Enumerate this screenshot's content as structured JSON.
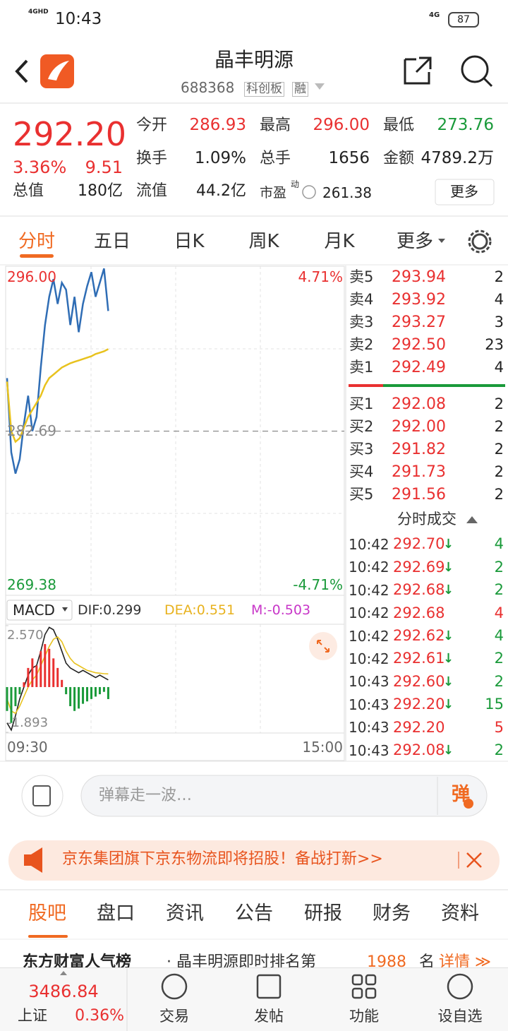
{
  "status_bar": {
    "network": "4GHD",
    "time": "10:43",
    "signal": "4G",
    "battery": "87"
  },
  "header": {
    "title": "晶丰明源",
    "code": "688368",
    "tags": [
      "科创板",
      "融"
    ]
  },
  "quote": {
    "price": "292.20",
    "change_pct": "3.36%",
    "change": "9.51",
    "stats": [
      [
        {
          "label": "今开",
          "value": "286.93",
          "tone": "up"
        },
        {
          "label": "最高",
          "value": "296.00",
          "tone": "up"
        },
        {
          "label": "最低",
          "value": "273.76",
          "tone": "down"
        }
      ],
      [
        {
          "label": "换手",
          "value": "1.09%"
        },
        {
          "label": "总手",
          "value": "1656"
        },
        {
          "label": "金额",
          "value": "4789.2万"
        }
      ]
    ],
    "caps": [
      {
        "label": "总值",
        "value": "180亿"
      },
      {
        "label": "流值",
        "value": "44.2亿"
      }
    ],
    "pe": {
      "label": "市盈",
      "sup": "动",
      "value": "261.38"
    },
    "more": "更多"
  },
  "tabs": [
    "分时",
    "五日",
    "日K",
    "周K",
    "月K",
    "更多"
  ],
  "active_tab": 0,
  "chart_data": [
    {
      "type": "line",
      "x": [
        "09:30",
        "09:33",
        "09:36",
        "09:39",
        "09:42",
        "09:45",
        "09:48",
        "09:51",
        "09:54",
        "09:57",
        "10:00",
        "10:03",
        "10:06",
        "10:09",
        "10:12",
        "10:15",
        "10:18",
        "10:21",
        "10:24",
        "10:27",
        "10:30",
        "10:33",
        "10:36",
        "10:39",
        "10:42"
      ],
      "xlim": [
        "09:30",
        "15:00"
      ],
      "ylim": [
        269.38,
        296.0
      ],
      "yticks": [
        {
          "value": 296.0,
          "label": "296.00"
        },
        {
          "value": 282.69,
          "label": "282.69"
        },
        {
          "value": 269.38,
          "label": "269.38"
        }
      ],
      "right_labels": [
        "4.71%",
        "-4.71%"
      ],
      "series": [
        {
          "color": "#2f6db5",
          "values": [
            286.99,
            280.97,
            279.25,
            280.4,
            283.26,
            285.56,
            282.69,
            283.84,
            287.85,
            291.29,
            293.58,
            295.01,
            293.0,
            294.72,
            294.15,
            291.29,
            293.58,
            290.71,
            293.0,
            294.44,
            295.58,
            293.58,
            294.72,
            295.87,
            292.43
          ]
        },
        {
          "color": "#e8c21e",
          "values": [
            286.7,
            282.69,
            281.83,
            282.12,
            282.98,
            283.84,
            284.41,
            284.98,
            285.56,
            286.41,
            286.99,
            287.27,
            287.56,
            287.85,
            288.02,
            288.19,
            288.31,
            288.42,
            288.53,
            288.65,
            288.76,
            288.94,
            289.05,
            289.16,
            289.34
          ]
        }
      ]
    },
    {
      "type": "macd",
      "title": "MACD",
      "x": [
        "09:30",
        "09:33",
        "09:36",
        "09:39",
        "09:42",
        "09:45",
        "09:48",
        "09:51",
        "09:54",
        "09:57",
        "10:00",
        "10:03",
        "10:06",
        "10:09",
        "10:12",
        "10:15",
        "10:18",
        "10:21",
        "10:24",
        "10:27",
        "10:30",
        "10:33",
        "10:36",
        "10:39",
        "10:42"
      ],
      "xlim": [
        "09:30",
        "15:00"
      ],
      "ylim": [
        -1.893,
        2.57
      ],
      "yticks": [
        {
          "value": 2.57,
          "label": "2.570"
        },
        {
          "value": -1.893,
          "label": "-1.893"
        }
      ],
      "series": [
        {
          "name": "DIF:0.299",
          "color": "#222222",
          "values": [
            -1.5,
            -1.8,
            -1.2,
            -0.5,
            0,
            0.5,
            0.8,
            0.9,
            1.5,
            2.2,
            2.5,
            2.4,
            2.0,
            1.5,
            1.0,
            0.8,
            0.7,
            0.6,
            0.7,
            0.6,
            0.5,
            0.4,
            0.5,
            0.4,
            0.299
          ]
        },
        {
          "name": "DEA:0.551",
          "color": "#e8c21e",
          "values": [
            -0.5,
            -1.0,
            -1.1,
            -0.8,
            -0.4,
            0,
            0.3,
            0.5,
            0.9,
            1.3,
            1.7,
            2.0,
            2.1,
            1.9,
            1.5,
            1.2,
            1.0,
            0.9,
            0.8,
            0.7,
            0.65,
            0.6,
            0.58,
            0.56,
            0.551
          ]
        },
        {
          "name": "M:-0.503",
          "type": "bar",
          "color": "#c837c8",
          "values": [
            -1.0,
            -1.5,
            -0.8,
            -0.3,
            0.2,
            0.8,
            1.2,
            0.9,
            1.5,
            1.8,
            1.6,
            1.2,
            0.8,
            0.3,
            -0.3,
            -0.8,
            -1.0,
            -0.9,
            -0.7,
            -0.6,
            -0.5,
            -0.4,
            -0.3,
            -0.2,
            -0.503
          ]
        }
      ]
    }
  ],
  "order_book": {
    "asks": [
      {
        "label": "卖5",
        "price": "293.94",
        "volume": "2"
      },
      {
        "label": "卖4",
        "price": "293.92",
        "volume": "4"
      },
      {
        "label": "卖3",
        "price": "293.27",
        "volume": "3"
      },
      {
        "label": "卖2",
        "price": "292.50",
        "volume": "23"
      },
      {
        "label": "卖1",
        "price": "292.49",
        "volume": "4"
      }
    ],
    "bids": [
      {
        "label": "买1",
        "price": "292.08",
        "volume": "2"
      },
      {
        "label": "买2",
        "price": "292.00",
        "volume": "2"
      },
      {
        "label": "买3",
        "price": "291.82",
        "volume": "2"
      },
      {
        "label": "买4",
        "price": "291.73",
        "volume": "2"
      },
      {
        "label": "买5",
        "price": "291.56",
        "volume": "2"
      }
    ]
  },
  "trades": {
    "title": "分时成交",
    "rows": [
      {
        "time": "10:42",
        "price": "292.70",
        "arrow": "↓",
        "volume": "4"
      },
      {
        "time": "10:42",
        "price": "292.69",
        "arrow": "↓",
        "volume": "2"
      },
      {
        "time": "10:42",
        "price": "292.68",
        "arrow": "↓",
        "volume": "2"
      },
      {
        "time": "10:42",
        "price": "292.68",
        "volume": "4"
      },
      {
        "time": "10:42",
        "price": "292.62",
        "arrow": "↓",
        "volume": "4"
      },
      {
        "time": "10:42",
        "price": "292.61",
        "arrow": "↓",
        "volume": "2"
      },
      {
        "time": "10:43",
        "price": "292.60",
        "arrow": "↓",
        "volume": "2"
      },
      {
        "time": "10:43",
        "price": "292.20",
        "arrow": "↓",
        "volume": "15"
      },
      {
        "time": "10:43",
        "price": "292.20",
        "volume": "5"
      },
      {
        "time": "10:43",
        "price": "292.08",
        "arrow": "↓",
        "volume": "2"
      }
    ]
  },
  "chat": {
    "placeholder": "弹幕走一波…",
    "button": "弹"
  },
  "banner": "京东集团旗下京东物流即将招股！备战打新>>",
  "news_tabs": [
    "股吧",
    "盘口",
    "资讯",
    "公告",
    "研报",
    "财务",
    "资料"
  ],
  "ticker": {
    "source": "东方财富人气榜",
    "text": "· 晶丰明源即时排名第",
    "rank": "1988",
    "unit": "名",
    "link": "详情 ≫"
  },
  "bottom_nav": {
    "index": {
      "value": "3486.84",
      "name": "上证",
      "pct": "0.36%"
    },
    "items": [
      "交易",
      "发帖",
      "功能",
      "设自选"
    ]
  }
}
